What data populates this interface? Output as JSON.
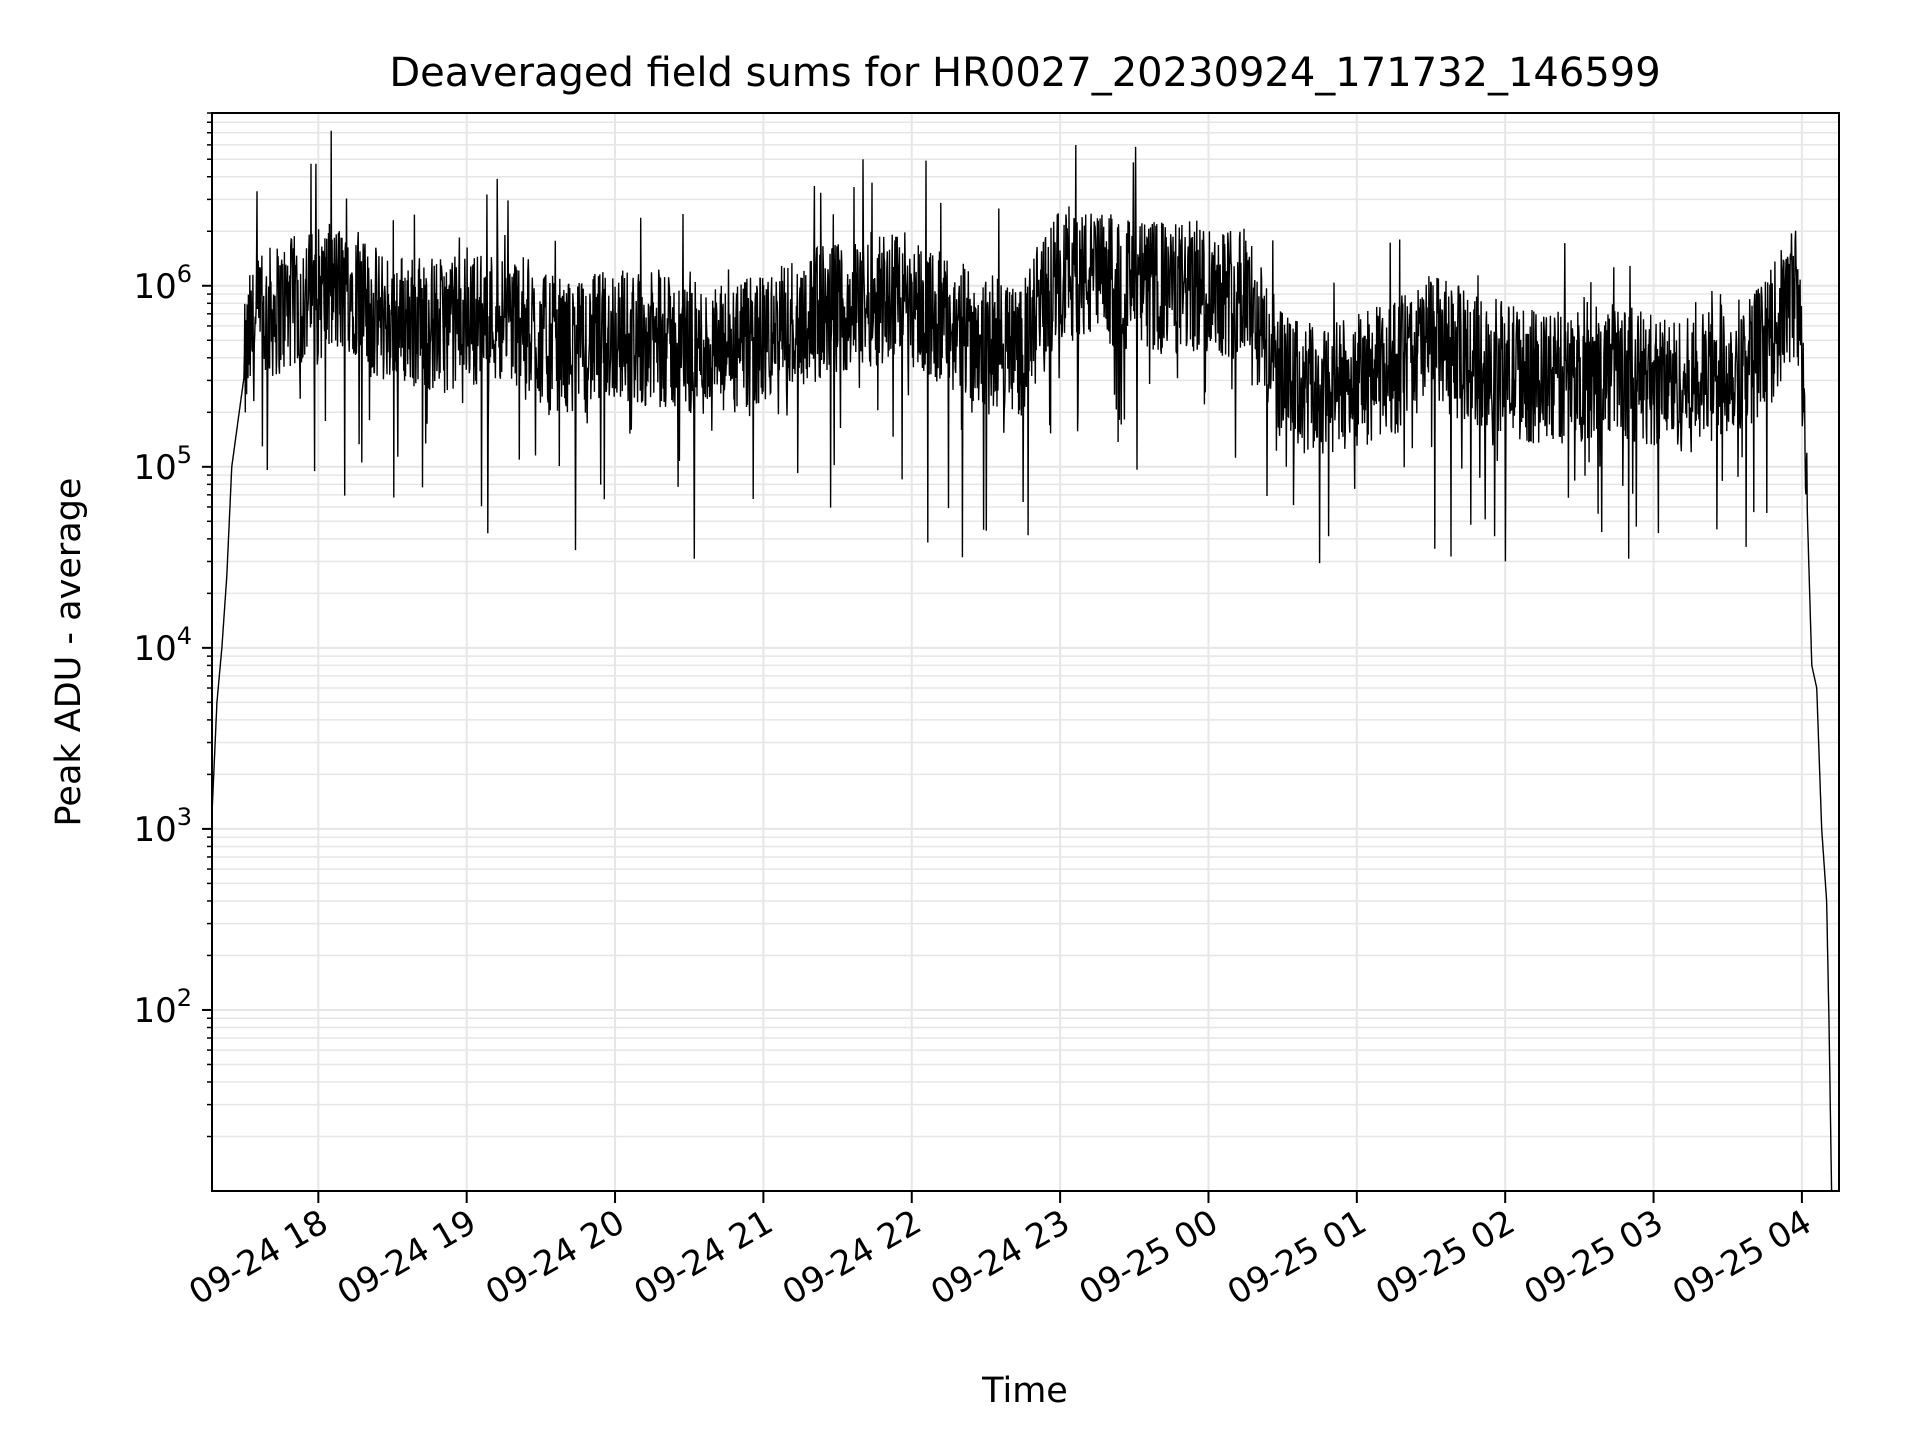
{
  "chart_data": {
    "type": "line",
    "title": "Deaveraged field sums for HR0027_20230924_171732_146599",
    "xlabel": "Time",
    "ylabel": "Peak ADU - average",
    "y_scale": "log",
    "ylim": [
      10,
      9000000
    ],
    "xlim": [
      "2023-09-24 17:17",
      "2023-09-25 04:15"
    ],
    "grid": true,
    "line_color": "#000000",
    "grid_color": "#e6e6e6",
    "x_ticks": [
      {
        "value": "2023-09-24 18:00",
        "label": "09-24 18"
      },
      {
        "value": "2023-09-24 19:00",
        "label": "09-24 19"
      },
      {
        "value": "2023-09-24 20:00",
        "label": "09-24 20"
      },
      {
        "value": "2023-09-24 21:00",
        "label": "09-24 21"
      },
      {
        "value": "2023-09-24 22:00",
        "label": "09-24 22"
      },
      {
        "value": "2023-09-24 23:00",
        "label": "09-24 23"
      },
      {
        "value": "2023-09-25 00:00",
        "label": "09-25 00"
      },
      {
        "value": "2023-09-25 01:00",
        "label": "09-25 01"
      },
      {
        "value": "2023-09-25 02:00",
        "label": "09-25 02"
      },
      {
        "value": "2023-09-25 03:00",
        "label": "09-25 03"
      },
      {
        "value": "2023-09-25 04:00",
        "label": "09-25 04"
      }
    ],
    "y_ticks": [
      {
        "value": 100,
        "base": "10",
        "exp": "2"
      },
      {
        "value": 1000,
        "base": "10",
        "exp": "3"
      },
      {
        "value": 10000,
        "base": "10",
        "exp": "4"
      },
      {
        "value": 100000,
        "base": "10",
        "exp": "5"
      },
      {
        "value": 1000000,
        "base": "10",
        "exp": "6"
      }
    ],
    "series": [
      {
        "x": [
          "2023-09-24 17:17",
          "2023-09-24 17:19",
          "2023-09-24 17:21",
          "2023-09-24 17:23",
          "2023-09-24 17:25",
          "2023-09-24 17:28",
          "2023-09-24 17:32",
          "2023-09-24 17:40",
          "2023-09-24 17:50",
          "2023-09-24 18:00",
          "2023-09-24 18:10",
          "2023-09-24 18:14",
          "2023-09-24 18:20",
          "2023-09-24 18:35",
          "2023-09-24 18:50",
          "2023-09-24 19:00",
          "2023-09-24 19:15",
          "2023-09-24 19:25",
          "2023-09-24 19:30",
          "2023-09-24 19:45",
          "2023-09-24 20:00",
          "2023-09-24 20:15",
          "2023-09-24 20:30",
          "2023-09-24 20:45",
          "2023-09-24 21:00",
          "2023-09-24 21:15",
          "2023-09-24 21:30",
          "2023-09-24 21:45",
          "2023-09-24 21:55",
          "2023-09-24 22:15",
          "2023-09-24 22:30",
          "2023-09-24 22:45",
          "2023-09-24 23:00",
          "2023-09-24 23:15",
          "2023-09-24 23:30",
          "2023-09-24 23:45",
          "2023-09-25 00:00",
          "2023-09-25 00:15",
          "2023-09-25 00:30",
          "2023-09-25 00:45",
          "2023-09-25 01:00",
          "2023-09-25 01:15",
          "2023-09-25 01:30",
          "2023-09-25 01:45",
          "2023-09-25 02:00",
          "2023-09-25 02:15",
          "2023-09-25 02:30",
          "2023-09-25 02:45",
          "2023-09-25 03:00",
          "2023-09-25 03:15",
          "2023-09-25 03:30",
          "2023-09-25 03:45",
          "2023-09-25 03:58",
          "2023-09-25 04:01",
          "2023-09-25 04:04",
          "2023-09-25 04:06",
          "2023-09-25 04:08",
          "2023-09-25 04:10",
          "2023-09-25 04:11",
          "2023-09-25 04:12"
        ],
        "y": [
          1200,
          5000,
          10000,
          25000,
          100000,
          200000,
          500000,
          700000,
          800000,
          900000,
          950000,
          1000000,
          700000,
          650000,
          600000,
          650000,
          700000,
          600000,
          500000,
          450000,
          550000,
          500000,
          450000,
          420000,
          500000,
          650000,
          750000,
          850000,
          950000,
          600000,
          500000,
          450000,
          1200000,
          1100000,
          1000000,
          950000,
          1000000,
          900000,
          300000,
          250000,
          300000,
          350000,
          500000,
          400000,
          350000,
          300000,
          320000,
          350000,
          300000,
          280000,
          350000,
          450000,
          1000000,
          200000,
          8000,
          6000,
          1000,
          400,
          80,
          10
        ]
      }
    ]
  }
}
